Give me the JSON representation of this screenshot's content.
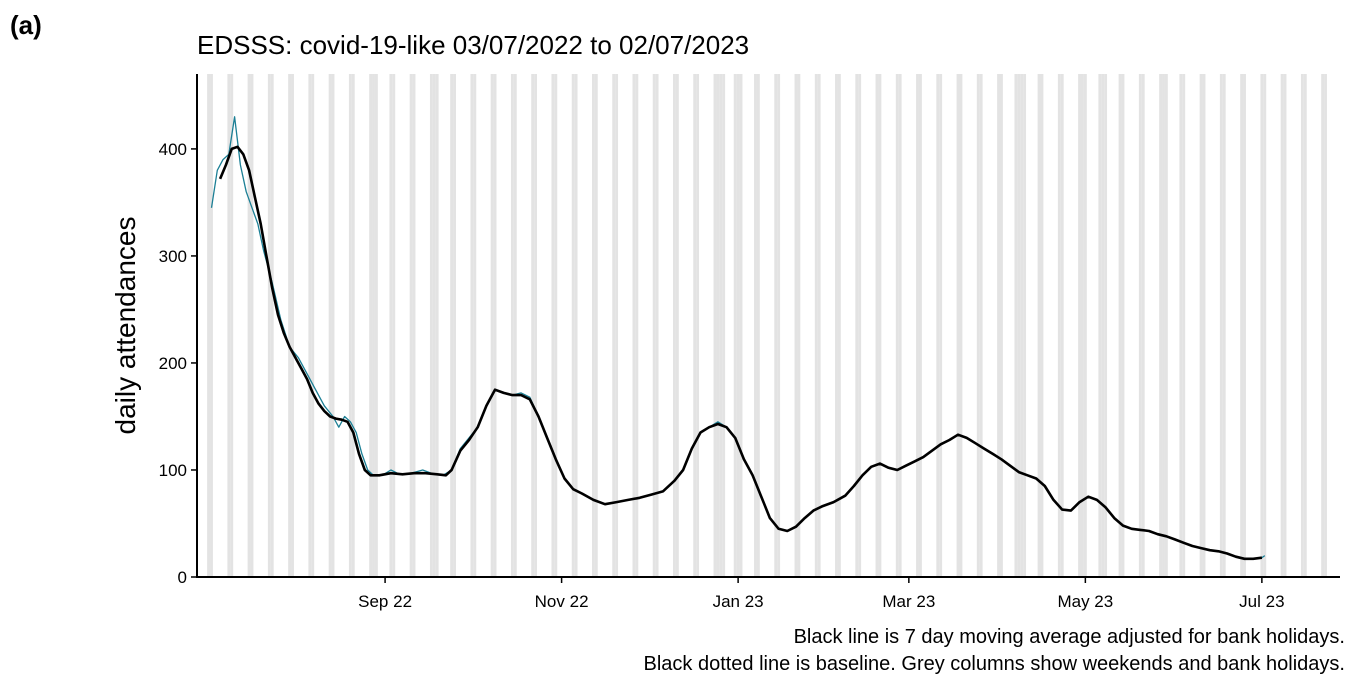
{
  "panel_label": "(a)",
  "chart_data": {
    "type": "line",
    "title": "EDSSS: covid-19-like 03/07/2022 to 02/07/2023",
    "ylabel": "daily attendances",
    "xlabel": "",
    "ylim": [
      0,
      470
    ],
    "xlim": [
      "2022-06-28",
      "2023-07-28"
    ],
    "grid": false,
    "y_ticks": [
      0,
      100,
      200,
      300,
      400
    ],
    "x_ticks": [
      {
        "date": "2022-09-01",
        "label": "Sep 22"
      },
      {
        "date": "2022-11-01",
        "label": "Nov 22"
      },
      {
        "date": "2023-01-01",
        "label": "Jan 23"
      },
      {
        "date": "2023-03-01",
        "label": "Mar 23"
      },
      {
        "date": "2023-05-01",
        "label": "May 23"
      },
      {
        "date": "2023-07-01",
        "label": "Jul 23"
      }
    ],
    "shaded_columns": "weekends and bank holidays",
    "bank_holidays": [
      "2022-08-29",
      "2022-09-19",
      "2022-12-26",
      "2022-12-27",
      "2023-01-02",
      "2023-04-07",
      "2023-04-10",
      "2023-05-01",
      "2023-05-08",
      "2023-05-29"
    ],
    "colors": {
      "daily": "#1b7f95",
      "average": "#000000",
      "shade": "#e3e3e3"
    },
    "series": [
      {
        "role": "daily",
        "style": "thin teal line",
        "points": [
          [
            "2022-07-03",
            345
          ],
          [
            "2022-07-05",
            380
          ],
          [
            "2022-07-07",
            390
          ],
          [
            "2022-07-09",
            395
          ],
          [
            "2022-07-11",
            430
          ],
          [
            "2022-07-13",
            385
          ],
          [
            "2022-07-15",
            360
          ],
          [
            "2022-07-17",
            345
          ],
          [
            "2022-07-19",
            330
          ],
          [
            "2022-07-21",
            305
          ],
          [
            "2022-07-24",
            275
          ],
          [
            "2022-07-27",
            240
          ],
          [
            "2022-07-30",
            215
          ],
          [
            "2022-08-02",
            205
          ],
          [
            "2022-08-05",
            190
          ],
          [
            "2022-08-08",
            175
          ],
          [
            "2022-08-11",
            160
          ],
          [
            "2022-08-14",
            150
          ],
          [
            "2022-08-16",
            140
          ],
          [
            "2022-08-18",
            150
          ],
          [
            "2022-08-20",
            145
          ],
          [
            "2022-08-22",
            135
          ],
          [
            "2022-08-24",
            115
          ],
          [
            "2022-08-26",
            100
          ],
          [
            "2022-08-28",
            95
          ],
          [
            "2022-08-31",
            95
          ],
          [
            "2022-09-03",
            100
          ],
          [
            "2022-09-06",
            96
          ],
          [
            "2022-09-10",
            97
          ],
          [
            "2022-09-14",
            100
          ],
          [
            "2022-09-18",
            96
          ],
          [
            "2022-09-21",
            95
          ],
          [
            "2022-09-24",
            100
          ],
          [
            "2022-09-27",
            120
          ],
          [
            "2022-09-30",
            130
          ],
          [
            "2022-10-03",
            140
          ],
          [
            "2022-10-06",
            160
          ],
          [
            "2022-10-09",
            175
          ],
          [
            "2022-10-12",
            172
          ],
          [
            "2022-10-15",
            170
          ],
          [
            "2022-10-18",
            172
          ],
          [
            "2022-10-21",
            168
          ],
          [
            "2022-10-24",
            150
          ],
          [
            "2022-10-27",
            130
          ],
          [
            "2022-10-30",
            110
          ],
          [
            "2022-11-02",
            92
          ],
          [
            "2022-11-05",
            82
          ],
          [
            "2022-11-08",
            78
          ],
          [
            "2022-11-12",
            72
          ],
          [
            "2022-11-16",
            68
          ],
          [
            "2022-11-20",
            70
          ],
          [
            "2022-11-24",
            72
          ],
          [
            "2022-11-28",
            74
          ],
          [
            "2022-12-02",
            77
          ],
          [
            "2022-12-06",
            80
          ],
          [
            "2022-12-10",
            90
          ],
          [
            "2022-12-13",
            100
          ],
          [
            "2022-12-16",
            120
          ],
          [
            "2022-12-19",
            135
          ],
          [
            "2022-12-22",
            140
          ],
          [
            "2022-12-25",
            145
          ],
          [
            "2022-12-28",
            140
          ],
          [
            "2022-12-31",
            130
          ],
          [
            "2023-01-03",
            110
          ],
          [
            "2023-01-06",
            95
          ],
          [
            "2023-01-09",
            75
          ],
          [
            "2023-01-12",
            55
          ],
          [
            "2023-01-15",
            45
          ],
          [
            "2023-01-18",
            43
          ],
          [
            "2023-01-21",
            47
          ],
          [
            "2023-01-24",
            55
          ],
          [
            "2023-01-27",
            62
          ],
          [
            "2023-01-30",
            66
          ],
          [
            "2023-02-03",
            70
          ],
          [
            "2023-02-07",
            76
          ],
          [
            "2023-02-10",
            85
          ],
          [
            "2023-02-13",
            95
          ],
          [
            "2023-02-16",
            103
          ],
          [
            "2023-02-19",
            106
          ],
          [
            "2023-02-22",
            102
          ],
          [
            "2023-02-25",
            100
          ],
          [
            "2023-02-28",
            104
          ],
          [
            "2023-03-03",
            108
          ],
          [
            "2023-03-06",
            112
          ],
          [
            "2023-03-09",
            118
          ],
          [
            "2023-03-12",
            124
          ],
          [
            "2023-03-15",
            128
          ],
          [
            "2023-03-18",
            133
          ],
          [
            "2023-03-21",
            130
          ],
          [
            "2023-03-24",
            125
          ],
          [
            "2023-03-27",
            120
          ],
          [
            "2023-03-30",
            115
          ],
          [
            "2023-04-02",
            110
          ],
          [
            "2023-04-05",
            104
          ],
          [
            "2023-04-08",
            98
          ],
          [
            "2023-04-11",
            95
          ],
          [
            "2023-04-14",
            92
          ],
          [
            "2023-04-17",
            85
          ],
          [
            "2023-04-20",
            72
          ],
          [
            "2023-04-23",
            63
          ],
          [
            "2023-04-26",
            62
          ],
          [
            "2023-04-29",
            70
          ],
          [
            "2023-05-02",
            75
          ],
          [
            "2023-05-05",
            72
          ],
          [
            "2023-05-08",
            65
          ],
          [
            "2023-05-11",
            55
          ],
          [
            "2023-05-14",
            48
          ],
          [
            "2023-05-17",
            45
          ],
          [
            "2023-05-20",
            44
          ],
          [
            "2023-05-23",
            43
          ],
          [
            "2023-05-26",
            40
          ],
          [
            "2023-05-29",
            38
          ],
          [
            "2023-06-01",
            35
          ],
          [
            "2023-06-04",
            32
          ],
          [
            "2023-06-07",
            29
          ],
          [
            "2023-06-10",
            27
          ],
          [
            "2023-06-13",
            25
          ],
          [
            "2023-06-16",
            24
          ],
          [
            "2023-06-19",
            22
          ],
          [
            "2023-06-22",
            19
          ],
          [
            "2023-06-25",
            17
          ],
          [
            "2023-06-28",
            17
          ],
          [
            "2023-07-01",
            18
          ],
          [
            "2023-07-02",
            20
          ]
        ]
      },
      {
        "role": "average",
        "style": "thick black line",
        "points": [
          [
            "2022-07-06",
            372
          ],
          [
            "2022-07-08",
            385
          ],
          [
            "2022-07-10",
            400
          ],
          [
            "2022-07-12",
            402
          ],
          [
            "2022-07-14",
            395
          ],
          [
            "2022-07-16",
            380
          ],
          [
            "2022-07-18",
            355
          ],
          [
            "2022-07-20",
            330
          ],
          [
            "2022-07-22",
            300
          ],
          [
            "2022-07-24",
            270
          ],
          [
            "2022-07-26",
            245
          ],
          [
            "2022-07-28",
            228
          ],
          [
            "2022-07-30",
            215
          ],
          [
            "2022-08-01",
            205
          ],
          [
            "2022-08-03",
            195
          ],
          [
            "2022-08-05",
            185
          ],
          [
            "2022-08-07",
            172
          ],
          [
            "2022-08-09",
            162
          ],
          [
            "2022-08-11",
            155
          ],
          [
            "2022-08-13",
            150
          ],
          [
            "2022-08-15",
            148
          ],
          [
            "2022-08-17",
            147
          ],
          [
            "2022-08-19",
            145
          ],
          [
            "2022-08-21",
            135
          ],
          [
            "2022-08-23",
            115
          ],
          [
            "2022-08-25",
            100
          ],
          [
            "2022-08-27",
            95
          ],
          [
            "2022-08-30",
            95
          ],
          [
            "2022-09-03",
            97
          ],
          [
            "2022-09-07",
            96
          ],
          [
            "2022-09-11",
            97
          ],
          [
            "2022-09-15",
            97
          ],
          [
            "2022-09-19",
            96
          ],
          [
            "2022-09-22",
            95
          ],
          [
            "2022-09-24",
            100
          ],
          [
            "2022-09-27",
            118
          ],
          [
            "2022-09-30",
            128
          ],
          [
            "2022-10-03",
            140
          ],
          [
            "2022-10-06",
            160
          ],
          [
            "2022-10-09",
            175
          ],
          [
            "2022-10-12",
            172
          ],
          [
            "2022-10-15",
            170
          ],
          [
            "2022-10-18",
            170
          ],
          [
            "2022-10-21",
            166
          ],
          [
            "2022-10-24",
            150
          ],
          [
            "2022-10-27",
            130
          ],
          [
            "2022-10-30",
            110
          ],
          [
            "2022-11-02",
            92
          ],
          [
            "2022-11-05",
            82
          ],
          [
            "2022-11-08",
            78
          ],
          [
            "2022-11-12",
            72
          ],
          [
            "2022-11-16",
            68
          ],
          [
            "2022-11-20",
            70
          ],
          [
            "2022-11-24",
            72
          ],
          [
            "2022-11-28",
            74
          ],
          [
            "2022-12-02",
            77
          ],
          [
            "2022-12-06",
            80
          ],
          [
            "2022-12-10",
            90
          ],
          [
            "2022-12-13",
            100
          ],
          [
            "2022-12-16",
            120
          ],
          [
            "2022-12-19",
            135
          ],
          [
            "2022-12-22",
            140
          ],
          [
            "2022-12-25",
            143
          ],
          [
            "2022-12-28",
            140
          ],
          [
            "2022-12-31",
            130
          ],
          [
            "2023-01-03",
            110
          ],
          [
            "2023-01-06",
            95
          ],
          [
            "2023-01-09",
            75
          ],
          [
            "2023-01-12",
            55
          ],
          [
            "2023-01-15",
            45
          ],
          [
            "2023-01-18",
            43
          ],
          [
            "2023-01-21",
            47
          ],
          [
            "2023-01-24",
            55
          ],
          [
            "2023-01-27",
            62
          ],
          [
            "2023-01-30",
            66
          ],
          [
            "2023-02-03",
            70
          ],
          [
            "2023-02-07",
            76
          ],
          [
            "2023-02-10",
            85
          ],
          [
            "2023-02-13",
            95
          ],
          [
            "2023-02-16",
            103
          ],
          [
            "2023-02-19",
            106
          ],
          [
            "2023-02-22",
            102
          ],
          [
            "2023-02-25",
            100
          ],
          [
            "2023-02-28",
            104
          ],
          [
            "2023-03-03",
            108
          ],
          [
            "2023-03-06",
            112
          ],
          [
            "2023-03-09",
            118
          ],
          [
            "2023-03-12",
            124
          ],
          [
            "2023-03-15",
            128
          ],
          [
            "2023-03-18",
            133
          ],
          [
            "2023-03-21",
            130
          ],
          [
            "2023-03-24",
            125
          ],
          [
            "2023-03-27",
            120
          ],
          [
            "2023-03-30",
            115
          ],
          [
            "2023-04-02",
            110
          ],
          [
            "2023-04-05",
            104
          ],
          [
            "2023-04-08",
            98
          ],
          [
            "2023-04-11",
            95
          ],
          [
            "2023-04-14",
            92
          ],
          [
            "2023-04-17",
            85
          ],
          [
            "2023-04-20",
            72
          ],
          [
            "2023-04-23",
            63
          ],
          [
            "2023-04-26",
            62
          ],
          [
            "2023-04-29",
            70
          ],
          [
            "2023-05-02",
            75
          ],
          [
            "2023-05-05",
            72
          ],
          [
            "2023-05-08",
            65
          ],
          [
            "2023-05-11",
            55
          ],
          [
            "2023-05-14",
            48
          ],
          [
            "2023-05-17",
            45
          ],
          [
            "2023-05-20",
            44
          ],
          [
            "2023-05-23",
            43
          ],
          [
            "2023-05-26",
            40
          ],
          [
            "2023-05-29",
            38
          ],
          [
            "2023-06-01",
            35
          ],
          [
            "2023-06-04",
            32
          ],
          [
            "2023-06-07",
            29
          ],
          [
            "2023-06-10",
            27
          ],
          [
            "2023-06-13",
            25
          ],
          [
            "2023-06-16",
            24
          ],
          [
            "2023-06-19",
            22
          ],
          [
            "2023-06-22",
            19
          ],
          [
            "2023-06-25",
            17
          ],
          [
            "2023-06-28",
            17
          ],
          [
            "2023-07-01",
            18
          ]
        ]
      }
    ]
  },
  "caption_line1": "Black line is 7 day moving average adjusted for bank holidays.",
  "caption_line2": "Black dotted line is baseline. Grey columns show weekends and bank holidays."
}
